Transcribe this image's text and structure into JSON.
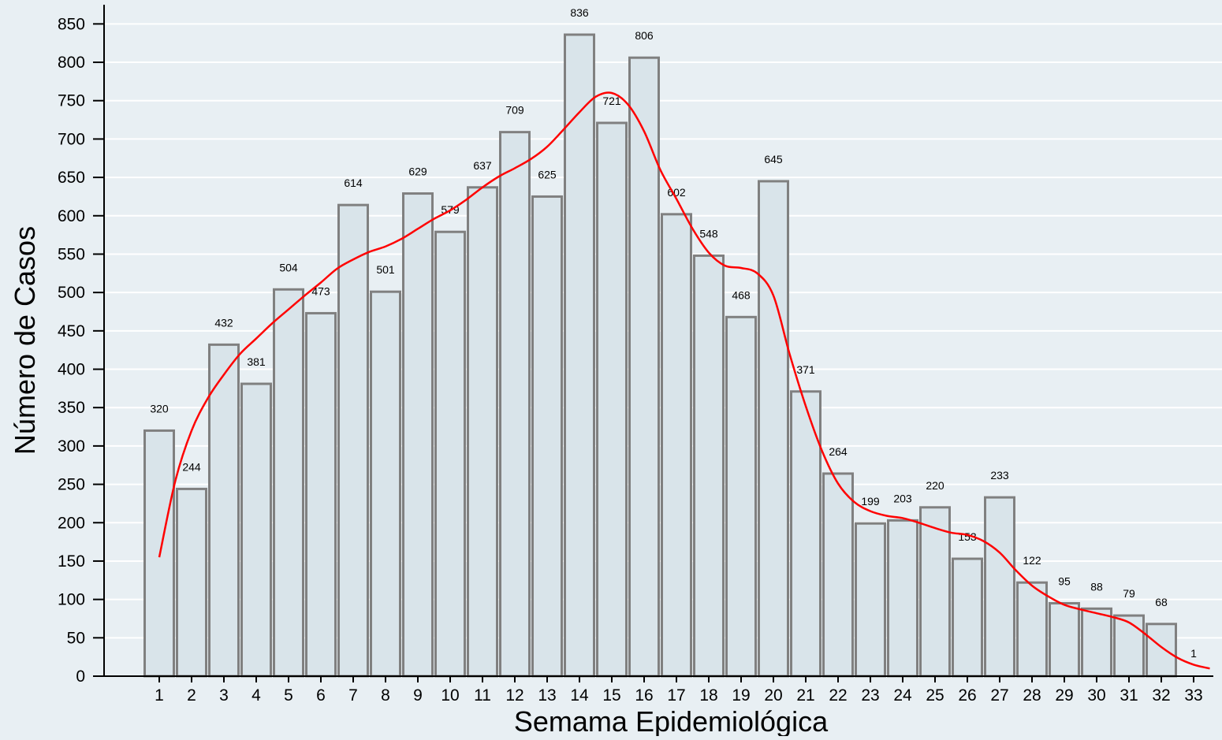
{
  "chart_data": {
    "type": "bar",
    "title": "",
    "xlabel": "Semama Epidemiológica",
    "ylabel": "Número de Casos",
    "categories": [
      "1",
      "2",
      "3",
      "4",
      "5",
      "6",
      "7",
      "8",
      "9",
      "10",
      "11",
      "12",
      "13",
      "14",
      "15",
      "16",
      "17",
      "18",
      "19",
      "20",
      "21",
      "22",
      "23",
      "24",
      "25",
      "26",
      "27",
      "28",
      "29",
      "30",
      "31",
      "32",
      "33"
    ],
    "series": [
      {
        "values": [
          320,
          244,
          432,
          381,
          504,
          473,
          614,
          501,
          629,
          579,
          637,
          709,
          625,
          836,
          721,
          806,
          602,
          548,
          468,
          645,
          371,
          264,
          199,
          203,
          220,
          153,
          233,
          122,
          95,
          88,
          79,
          68,
          1
        ],
        "color": "#d9e4ea"
      }
    ],
    "trend_line": {
      "color": "#ff0000",
      "x": [
        1,
        1.5,
        2,
        2.5,
        3,
        3.5,
        4,
        4.5,
        5,
        5.5,
        6,
        6.5,
        7,
        7.5,
        8,
        8.5,
        9,
        9.5,
        10,
        10.5,
        11,
        11.5,
        12,
        12.5,
        13,
        13.5,
        14,
        14.5,
        15,
        15.5,
        16,
        16.5,
        17,
        17.5,
        18,
        18.5,
        19,
        19.5,
        20,
        20.5,
        21,
        21.5,
        22,
        22.5,
        23,
        23.5,
        24,
        24.5,
        25,
        25.5,
        26,
        26.5,
        27,
        27.5,
        28,
        28.5,
        29,
        29.5,
        30,
        30.5,
        31,
        31.5,
        32,
        32.5,
        33,
        33.5
      ],
      "y": [
        155,
        255,
        320,
        362,
        393,
        420,
        440,
        460,
        478,
        496,
        513,
        531,
        543,
        553,
        560,
        570,
        583,
        596,
        607,
        621,
        637,
        651,
        662,
        674,
        690,
        712,
        735,
        755,
        760,
        745,
        710,
        660,
        622,
        583,
        552,
        535,
        532,
        525,
        496,
        420,
        352,
        294,
        251,
        227,
        215,
        209,
        206,
        200,
        193,
        187,
        184,
        176,
        161,
        138,
        118,
        104,
        93,
        87,
        82,
        77,
        70,
        55,
        38,
        24,
        15,
        10
      ]
    },
    "ylim": [
      0,
      850
    ],
    "yticks": [
      0,
      50,
      100,
      150,
      200,
      250,
      300,
      350,
      400,
      450,
      500,
      550,
      600,
      650,
      700,
      750,
      800,
      850
    ],
    "grid": true,
    "legend": "none"
  }
}
